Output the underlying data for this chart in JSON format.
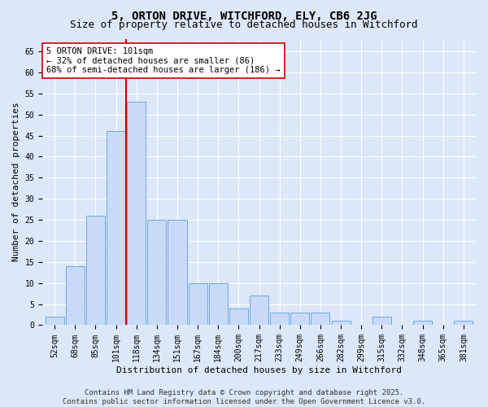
{
  "title_line1": "5, ORTON DRIVE, WITCHFORD, ELY, CB6 2JG",
  "title_line2": "Size of property relative to detached houses in Witchford",
  "xlabel": "Distribution of detached houses by size in Witchford",
  "ylabel": "Number of detached properties",
  "bar_labels": [
    "52sqm",
    "68sqm",
    "85sqm",
    "101sqm",
    "118sqm",
    "134sqm",
    "151sqm",
    "167sqm",
    "184sqm",
    "200sqm",
    "217sqm",
    "233sqm",
    "249sqm",
    "266sqm",
    "282sqm",
    "299sqm",
    "315sqm",
    "332sqm",
    "348sqm",
    "365sqm",
    "381sqm"
  ],
  "bar_values": [
    2,
    14,
    26,
    46,
    53,
    25,
    25,
    10,
    10,
    4,
    7,
    3,
    3,
    3,
    1,
    0,
    2,
    0,
    1,
    0,
    1
  ],
  "bar_color": "#c9daf8",
  "bar_edge_color": "#6fa8dc",
  "vline_x": 3.5,
  "vline_color": "#cc0000",
  "annotation_text": "5 ORTON DRIVE: 101sqm\n← 32% of detached houses are smaller (86)\n68% of semi-detached houses are larger (186) →",
  "annotation_box_color": "#ffffff",
  "annotation_box_edge": "#cc0000",
  "ylim": [
    0,
    68
  ],
  "yticks": [
    0,
    5,
    10,
    15,
    20,
    25,
    30,
    35,
    40,
    45,
    50,
    55,
    60,
    65
  ],
  "background_color": "#dce8f8",
  "plot_bg_color": "#dce8f8",
  "grid_color": "#ffffff",
  "footer_text": "Contains HM Land Registry data © Crown copyright and database right 2025.\nContains public sector information licensed under the Open Government Licence v3.0.",
  "title_fontsize": 10,
  "subtitle_fontsize": 9,
  "axis_label_fontsize": 8,
  "tick_fontsize": 7,
  "annotation_fontsize": 7.5,
  "footer_fontsize": 6.5
}
